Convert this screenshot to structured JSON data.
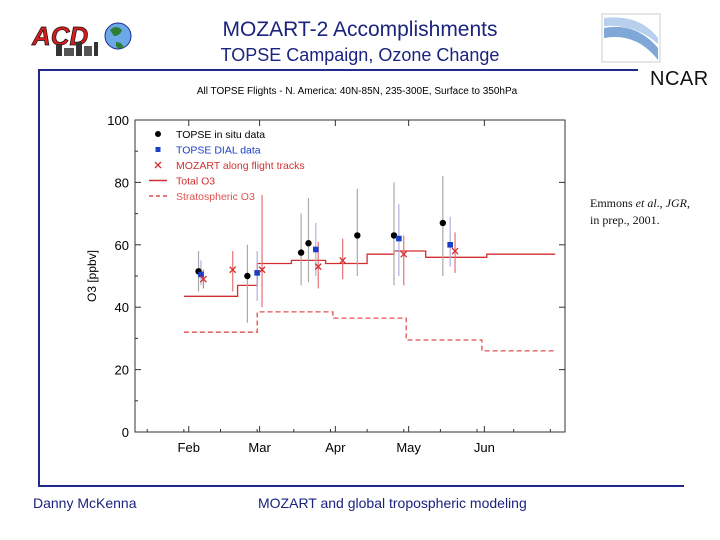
{
  "slide": {
    "title": "MOZART-2 Accomplishments",
    "subtitle": "TOPSE Campaign, Ozone Change",
    "logo_left": "ACD",
    "logo_right": "NCAR",
    "citation_lead": "Emmons ",
    "citation_etal": "et al",
    "citation_mid": "., ",
    "citation_journal": "JGR",
    "citation_tail": ",",
    "citation_line2": "in prep., 2001.",
    "footer_author": "Danny McKenna",
    "footer_topic": "MOZART and global tropospheric modeling"
  },
  "colors": {
    "title": "#1a237e",
    "rule": "#1f2a8c",
    "insitu": "#000000",
    "dial": "#1a3fc4",
    "model": "#d32f2f",
    "strat": "#e05050"
  },
  "chart_data": {
    "type": "scatter",
    "title": "All TOPSE Flights - N. America: 40N-85N, 235-300E, Surface to 350hPa",
    "ylabel": "O3 [ppbv]",
    "ylim": [
      0,
      100
    ],
    "yticks": [
      0,
      20,
      40,
      60,
      80,
      100
    ],
    "x_unit": "day of 2000",
    "xlim": [
      10,
      186
    ],
    "x_ticks": [
      {
        "label": "Feb",
        "day": 32
      },
      {
        "label": "Mar",
        "day": 61
      },
      {
        "label": "Apr",
        "day": 92
      },
      {
        "label": "May",
        "day": 122
      },
      {
        "label": "Jun",
        "day": 153
      }
    ],
    "legend": [
      {
        "label": "TOPSE in situ data",
        "marker": "circle"
      },
      {
        "label": "TOPSE DIAL data",
        "marker": "square"
      },
      {
        "label": "MOZART along flight tracks",
        "marker": "x"
      },
      {
        "label": "Total O3",
        "marker": "solid-line"
      },
      {
        "label": "Stratospheric O3",
        "marker": "dashed-line"
      }
    ],
    "series": [
      {
        "name": "TOPSE in situ data",
        "marker": "circle",
        "color": "#000000",
        "err_color": "#aaaaaa",
        "points": [
          {
            "x": 36,
            "y": 51.5,
            "lo": 45,
            "hi": 58
          },
          {
            "x": 56,
            "y": 50,
            "lo": 35,
            "hi": 60
          },
          {
            "x": 78,
            "y": 57.5,
            "lo": 47,
            "hi": 70
          },
          {
            "x": 81,
            "y": 60.5,
            "lo": 48,
            "hi": 75
          },
          {
            "x": 101,
            "y": 63,
            "lo": 50,
            "hi": 78
          },
          {
            "x": 116,
            "y": 63,
            "lo": 47,
            "hi": 80
          },
          {
            "x": 136,
            "y": 67,
            "lo": 50,
            "hi": 82
          }
        ]
      },
      {
        "name": "TOPSE DIAL data",
        "marker": "square",
        "color": "#1a3fc4",
        "err_color": "#b0b0e0",
        "points": [
          {
            "x": 37,
            "y": 50.5,
            "lo": 47,
            "hi": 55
          },
          {
            "x": 60,
            "y": 51,
            "lo": 42,
            "hi": 58
          },
          {
            "x": 84,
            "y": 58.5,
            "lo": 50,
            "hi": 67
          },
          {
            "x": 118,
            "y": 62,
            "lo": 50,
            "hi": 73
          },
          {
            "x": 139,
            "y": 60,
            "lo": 53,
            "hi": 69
          }
        ]
      },
      {
        "name": "MOZART along flight tracks",
        "marker": "x",
        "color": "#d32f2f",
        "err_color": "#e57373",
        "points": [
          {
            "x": 38,
            "y": 49,
            "lo": 46,
            "hi": 52
          },
          {
            "x": 50,
            "y": 52,
            "lo": 45,
            "hi": 58
          },
          {
            "x": 62,
            "y": 52,
            "lo": 40,
            "hi": 76
          },
          {
            "x": 85,
            "y": 53,
            "lo": 46,
            "hi": 61
          },
          {
            "x": 95,
            "y": 55,
            "lo": 49,
            "hi": 62
          },
          {
            "x": 120,
            "y": 57,
            "lo": 47,
            "hi": 63
          },
          {
            "x": 141,
            "y": 58,
            "lo": 51,
            "hi": 64
          }
        ]
      }
    ],
    "step_lines": [
      {
        "name": "Total O3",
        "style": "solid",
        "color": "#d32f2f",
        "steps": [
          {
            "x0": 30,
            "x1": 52,
            "y": 43.5
          },
          {
            "x0": 52,
            "x1": 60,
            "y": 47
          },
          {
            "x0": 60,
            "x1": 74,
            "y": 54
          },
          {
            "x0": 74,
            "x1": 88,
            "y": 55
          },
          {
            "x0": 88,
            "x1": 105,
            "y": 54
          },
          {
            "x0": 105,
            "x1": 116,
            "y": 57
          },
          {
            "x0": 116,
            "x1": 129,
            "y": 58
          },
          {
            "x0": 129,
            "x1": 154,
            "y": 56
          },
          {
            "x0": 154,
            "x1": 182,
            "y": 57
          }
        ]
      },
      {
        "name": "Stratospheric O3",
        "style": "dashed",
        "color": "#e05050",
        "steps": [
          {
            "x0": 30,
            "x1": 60,
            "y": 32
          },
          {
            "x0": 60,
            "x1": 91,
            "y": 38.5
          },
          {
            "x0": 91,
            "x1": 121,
            "y": 36.5
          },
          {
            "x0": 121,
            "x1": 152,
            "y": 29.5
          },
          {
            "x0": 152,
            "x1": 182,
            "y": 26
          }
        ]
      }
    ]
  }
}
